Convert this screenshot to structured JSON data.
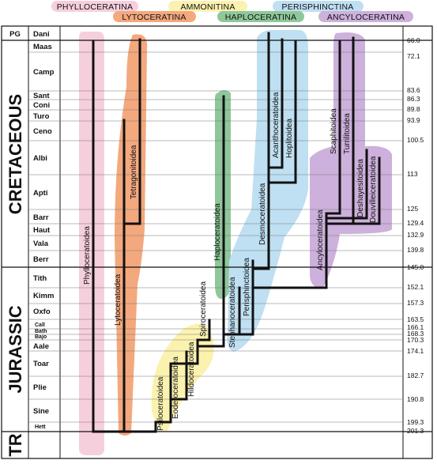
{
  "legend": {
    "phylloceratina": "PHYLLOCERATINA",
    "ammonitina": "AMMONITINA",
    "perisphinctina": "PERISPHINCTINA",
    "lytoceratina": "LYTOCERATINA",
    "haploceratina": "HAPLOCERATINA",
    "ancyloceratina": "ANCYLOCERATINA"
  },
  "colors": {
    "phylloceratina": "#f6cfdd",
    "ammonitina": "#fbf2b0",
    "perisphinctina": "#bfe0f2",
    "lytoceratina": "#f4a87e",
    "haploceratina": "#8fc79a",
    "ancyloceratina": "#cdb0dc"
  },
  "periods": {
    "pg": "PG",
    "cretaceous": "CRETACEOUS",
    "jurassic": "JURASSIC",
    "tr": "TR"
  },
  "stages": {
    "dani": "Dani",
    "maas": "Maas",
    "camp": "Camp",
    "sant": "Sant",
    "coni": "Coni",
    "turo": "Turo",
    "ceno": "Ceno",
    "albi": "Albi",
    "apti": "Apti",
    "barr": "Barr",
    "haut": "Haut",
    "vala": "Vala",
    "berr": "Berr",
    "tith": "Tith",
    "kimm": "Kimm",
    "oxfo": "Oxfo",
    "call": "Call",
    "bath": "Bath",
    "bajo": "Bajo",
    "aale": "Aale",
    "toar": "Toar",
    "plie": "Plie",
    "sine": "Sine",
    "hett": "Hett"
  },
  "ages": {
    "a66": "66.0",
    "a72": "72.1",
    "a83": "83.6",
    "a86": "86.3",
    "a89": "89.8",
    "a93": "93.9",
    "a100": "100.5",
    "a113": "113",
    "a125": "125",
    "a129": "129.4",
    "a132": "132.9",
    "a139": "139.8",
    "a145": "145.0",
    "a152": "152.1",
    "a157": "157.3",
    "a163": "163.5",
    "a166": "166.1",
    "a168": "168.3",
    "a170": "170.3",
    "a174": "174.1",
    "a182": "182.7",
    "a190": "190.8",
    "a199": "199.3",
    "a201": "201.3"
  },
  "taxa": {
    "phylloceratoidea": "Phylloceratoidea",
    "lytoceratoidea": "Lytoceratoidea",
    "tetragonitoidea": "Tetragonitoidea",
    "psiloceratoidea": "Psiloceratoidea",
    "eoderoceratoidea": "Eoderoceratoidea",
    "hildoceratoidea": "Hildoceratoidea",
    "spiroceratoidea": "Spiroceratoidea",
    "haploceratoidea": "Haploceratoidea",
    "stephanoceratoidea": "Stephanoceratoidea",
    "perisphinctoidea": "Perisphinctoidea",
    "desmoceratoidea": "Desmoceratoidea",
    "acanthoceratoidea": "Acanthoceratoidea",
    "hoplitoidea": "Hoplitoidea",
    "ancyloceratoidea": "Ancyloceratoidea",
    "scaphitoidea": "Scaphitoidea",
    "turrilitoidea": "Turrilitoidea",
    "deshayesitoidea": "Deshayesitoidea",
    "douvilleiceratoidea": "Douvilleiceratoidea"
  }
}
